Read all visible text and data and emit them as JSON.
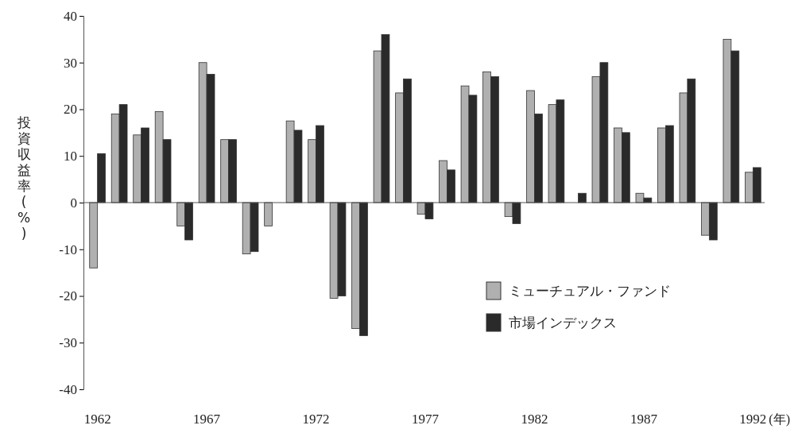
{
  "chart_data": {
    "type": "bar",
    "ylabel": "投資収益率(%)",
    "xlabel": "(年)",
    "categories": [
      "1962",
      null,
      null,
      null,
      null,
      "1967",
      null,
      null,
      null,
      null,
      "1972",
      null,
      null,
      null,
      null,
      "1977",
      null,
      null,
      null,
      null,
      "1982",
      null,
      null,
      null,
      null,
      "1987",
      null,
      null,
      null,
      null,
      "1992"
    ],
    "series": [
      {
        "name": "ミューチュアル・ファンド",
        "color": "#b0b0b0",
        "values": [
          -14,
          19,
          14.5,
          19.5,
          -5,
          30,
          13.5,
          -11,
          -5,
          17.5,
          13.5,
          -20.5,
          -27,
          32.5,
          23.5,
          -2.5,
          9,
          25,
          28,
          -3,
          24,
          21,
          null,
          27,
          16,
          2,
          16,
          23.5,
          -7,
          35,
          6.5
        ]
      },
      {
        "name": "市場インデックス",
        "color": "#2a2a2a",
        "values": [
          10.5,
          21,
          16,
          13.5,
          -8,
          27.5,
          13.5,
          -10.5,
          null,
          15.5,
          16.5,
          -20,
          -28.5,
          36,
          26.5,
          -3.5,
          7,
          23,
          27,
          -4.5,
          19,
          22,
          2,
          30,
          15,
          1,
          16.5,
          26.5,
          -8,
          32.5,
          7.5
        ]
      }
    ],
    "ylim": [
      -40,
      40
    ],
    "yticks": [
      -40,
      -30,
      -20,
      -10,
      0,
      10,
      20,
      30,
      40
    ],
    "legend": "right"
  }
}
